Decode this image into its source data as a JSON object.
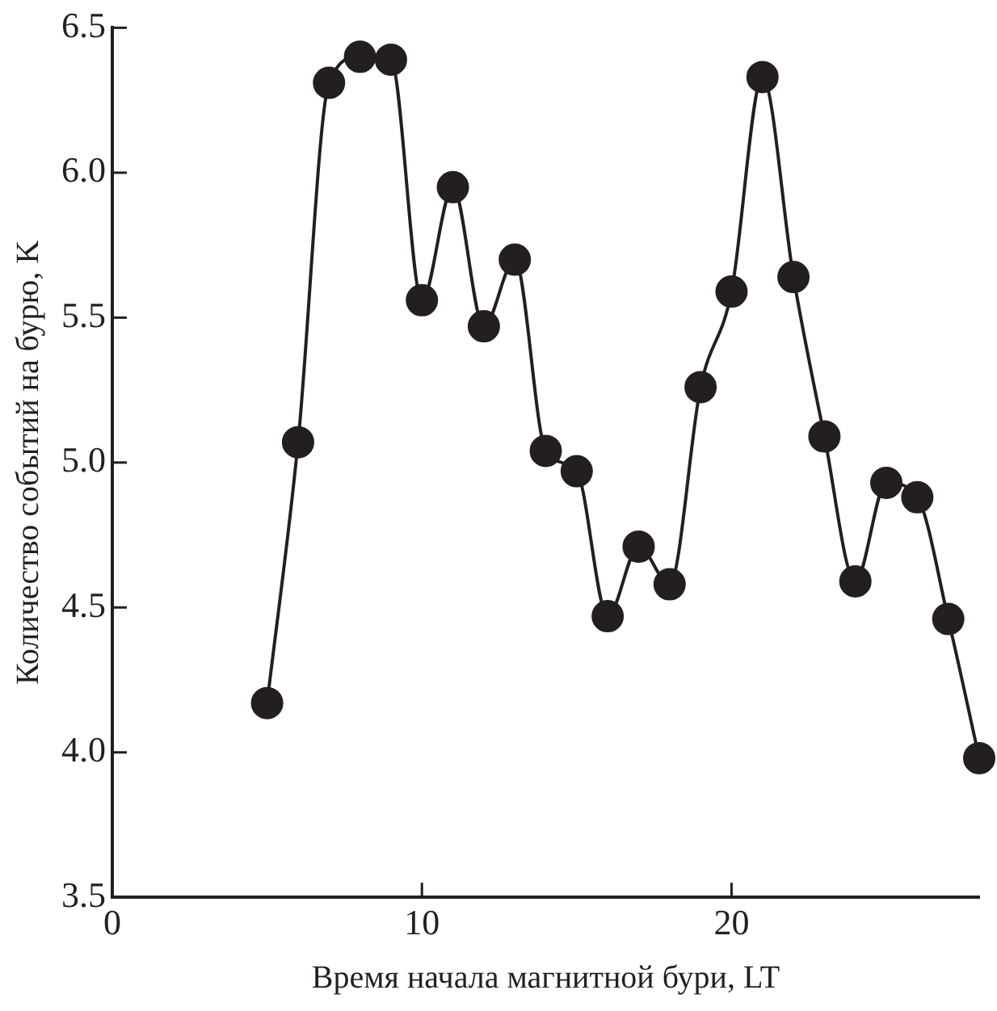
{
  "chart_data": {
    "type": "line",
    "xlabel": "Время начала магнитной бури, LT",
    "ylabel": "Количество событий на бурю, K",
    "x": [
      5,
      6,
      7,
      8,
      9,
      10,
      11,
      12,
      13,
      14,
      15,
      16,
      17,
      18,
      19,
      20,
      21,
      22,
      23,
      24,
      25,
      26,
      27,
      28
    ],
    "series": [
      {
        "color": "#231f20",
        "values": [
          4.17,
          5.07,
          6.31,
          6.4,
          6.39,
          5.56,
          5.95,
          5.47,
          5.7,
          5.04,
          4.97,
          4.47,
          4.71,
          4.58,
          5.26,
          5.59,
          6.33,
          5.64,
          5.09,
          4.59,
          4.93,
          4.88,
          4.46,
          3.98
        ]
      }
    ],
    "xlim": [
      0,
      28
    ],
    "xticks": [
      0,
      10,
      20
    ],
    "ylim": [
      3.5,
      6.5
    ],
    "yticks": [
      {
        "value": 3.5,
        "label": "3.5"
      },
      {
        "value": 4,
        "label": "4.0"
      },
      {
        "value": 4.5,
        "label": "4.5"
      },
      {
        "value": 5,
        "label": "5.0"
      },
      {
        "value": 5.5,
        "label": "5.5"
      },
      {
        "value": 6,
        "label": "6.0"
      },
      {
        "value": 6.5,
        "label": "6.5"
      }
    ],
    "grid": false,
    "legend": false,
    "marker": "circle",
    "line_style": "solid"
  }
}
